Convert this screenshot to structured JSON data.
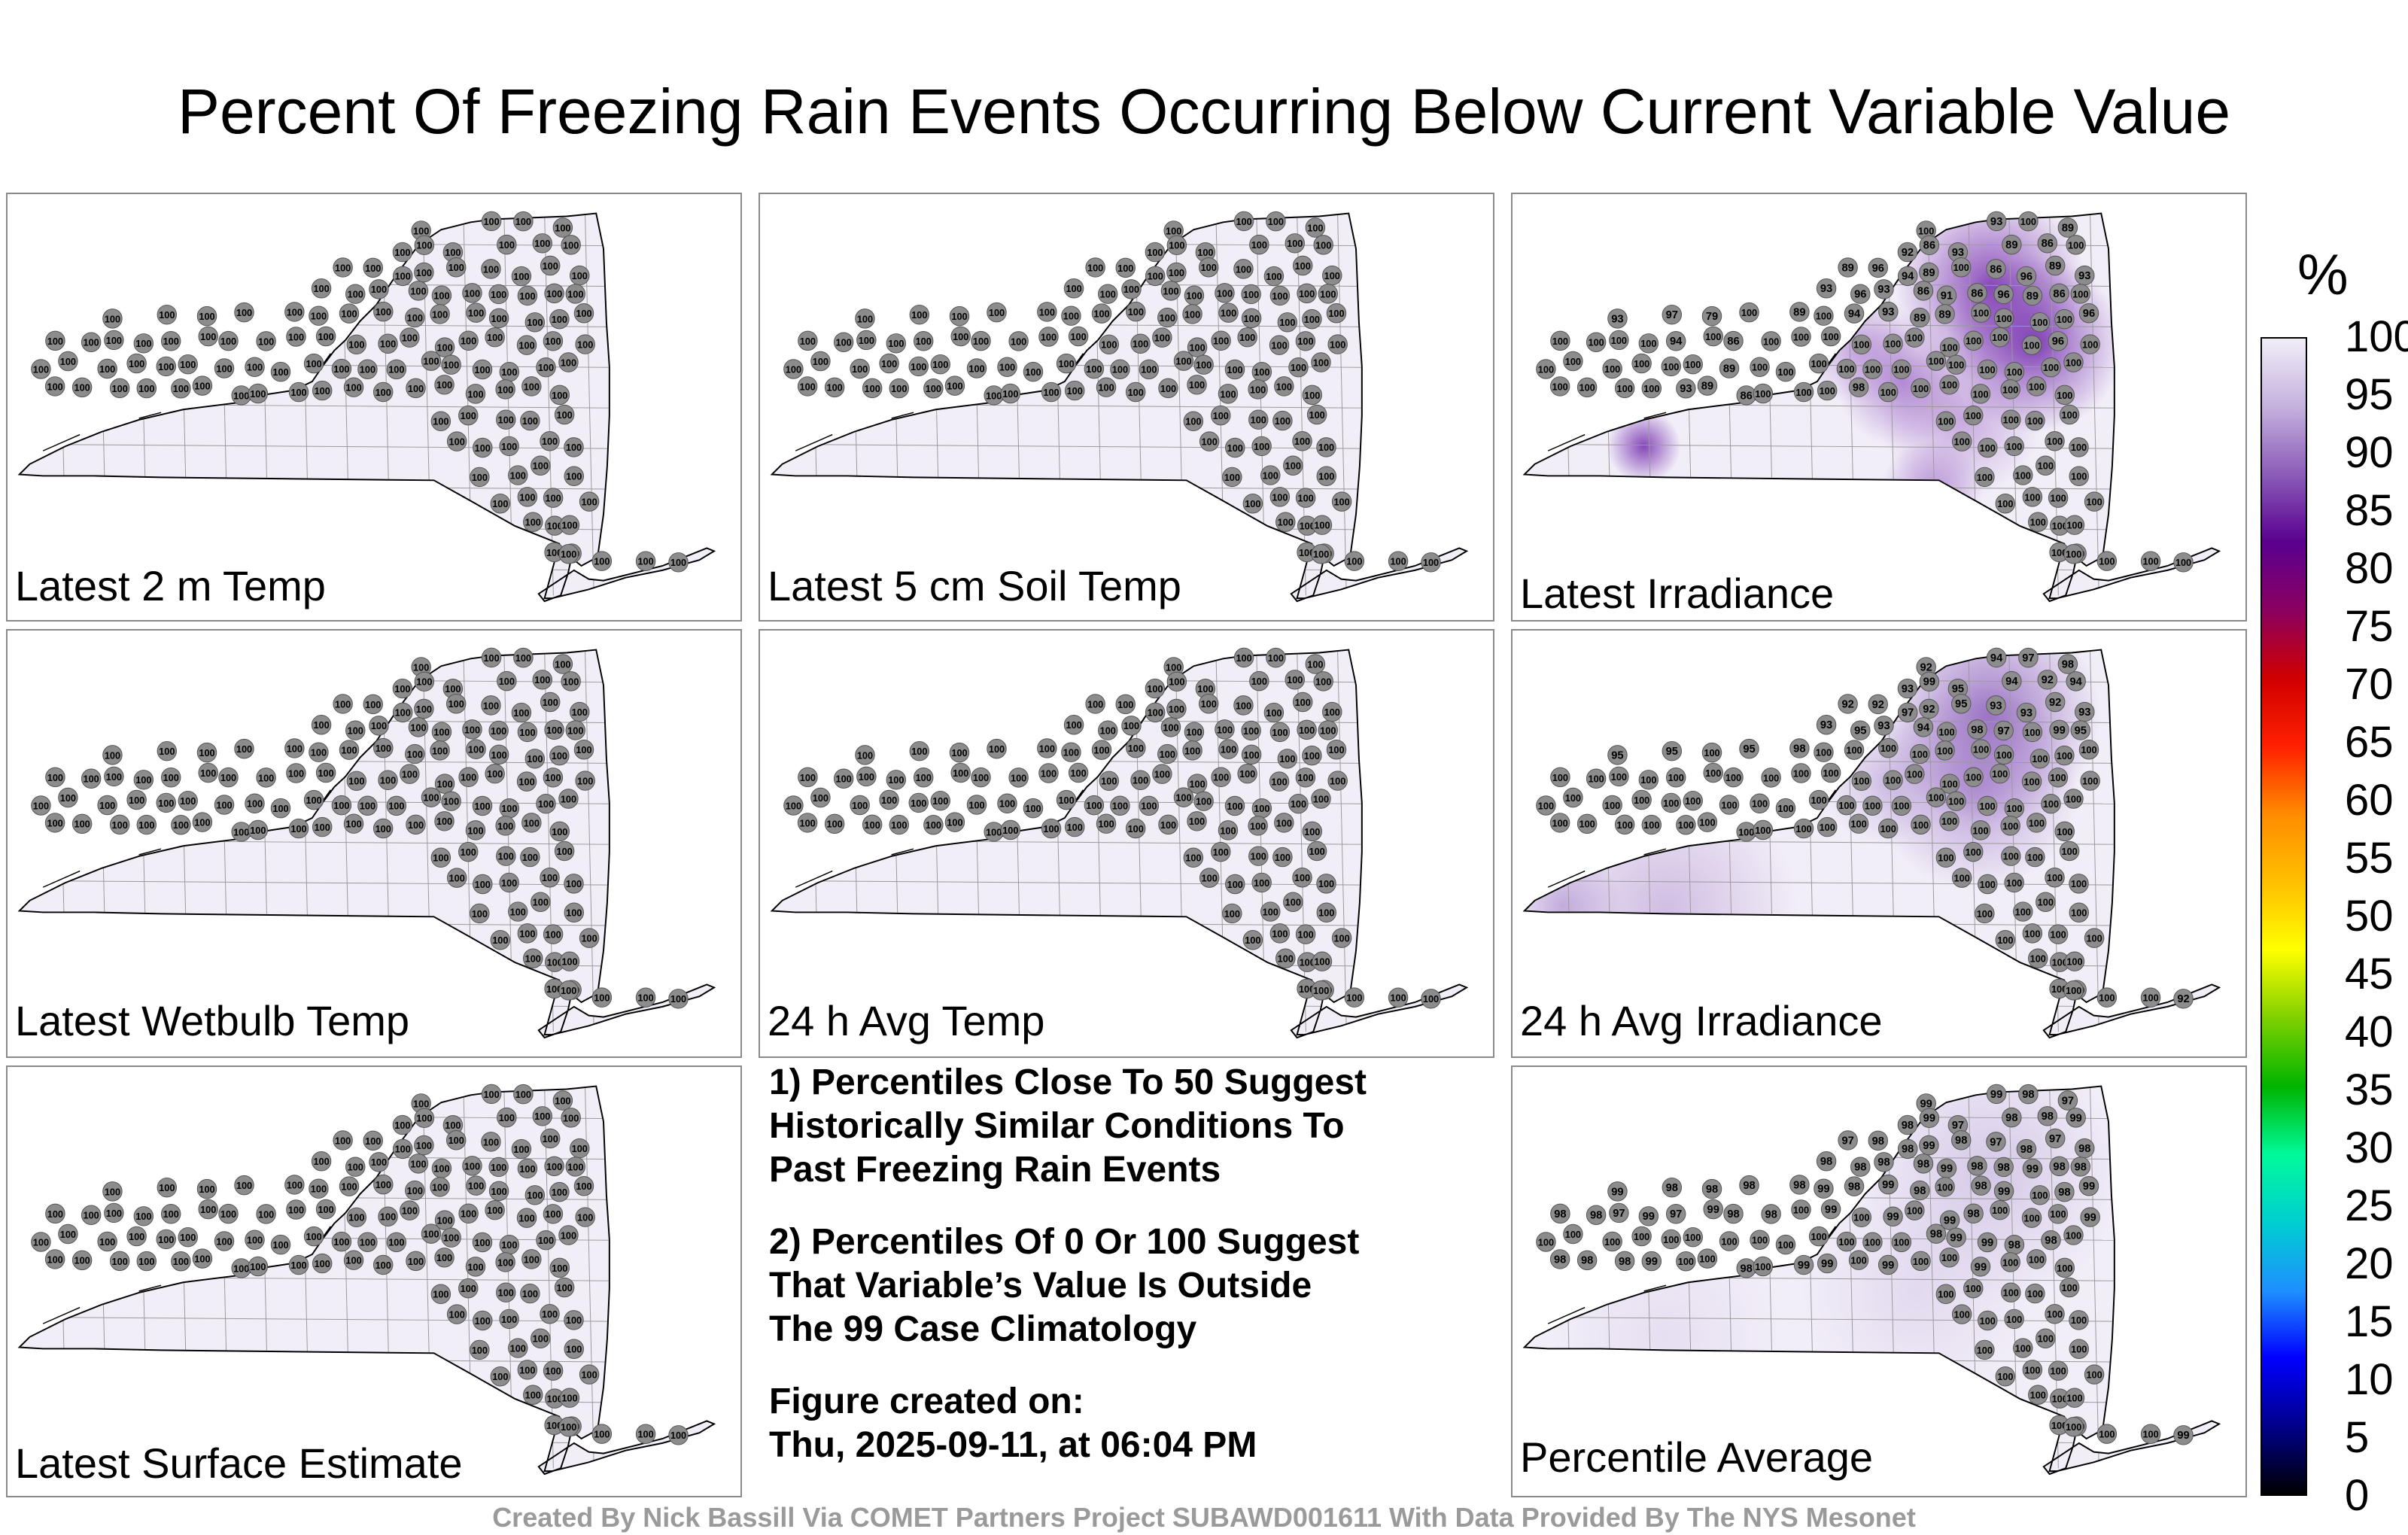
{
  "title": "Percent Of Freezing Rain Events Occurring Below Current Variable Value",
  "panels": [
    {
      "label": "Latest 2 m Temp"
    },
    {
      "label": "Latest 5 cm Soil Temp"
    },
    {
      "label": "Latest Irradiance"
    },
    {
      "label": "Latest Wetbulb Temp"
    },
    {
      "label": "24 h Avg Temp"
    },
    {
      "label": "24 h Avg Irradiance"
    },
    {
      "label": "Latest Surface Estimate"
    },
    {
      "label": "Percentile Average"
    }
  ],
  "notes": {
    "note1": [
      "1) Percentiles Close To 50 Suggest",
      "Historically Similar Conditions To",
      "Past Freezing Rain Events"
    ],
    "note2": [
      "2) Percentiles Of 0 Or 100 Suggest",
      "That Variable’s Value Is Outside",
      "The 99 Case Climatology"
    ],
    "created_label": "Figure created on:",
    "created_value": "Thu, 2025-09-11, at 06:04 PM"
  },
  "colorbar": {
    "unit": "%",
    "ticks": [
      "100",
      "95",
      "90",
      "85",
      "80",
      "75",
      "70",
      "65",
      "60",
      "55",
      "50",
      "45",
      "40",
      "35",
      "30",
      "25",
      "20",
      "15",
      "10",
      "5",
      "0"
    ],
    "colors": [
      "#000000",
      "#00008b",
      "#0000ff",
      "#1e90ff",
      "#00ced1",
      "#00fa9a",
      "#00b400",
      "#7fd000",
      "#ffff00",
      "#ffc000",
      "#ff8c00",
      "#ff2000",
      "#d00000",
      "#8b0060",
      "#5a0090",
      "#8a5bb8",
      "#c4b1dd",
      "#f2eef8"
    ]
  },
  "credit": "Created By Nick Bassill Via COMET Partners Project SUBAWD001611 With Data Provided By The NYS Mesonet",
  "stations": {
    "uniform": [
      "100",
      "100",
      "100",
      "100",
      "100",
      "100",
      "100",
      "100",
      "100",
      "100",
      "100",
      "100",
      "100",
      "100",
      "100",
      "100",
      "100",
      "100",
      "100",
      "100",
      "100",
      "100",
      "100",
      "100",
      "100",
      "100",
      "100",
      "100",
      "100",
      "100",
      "100",
      "100",
      "100",
      "100",
      "100",
      "100",
      "100",
      "100",
      "100",
      "100",
      "100",
      "100",
      "100",
      "100",
      "100",
      "100",
      "100",
      "100",
      "100",
      "100",
      "100",
      "100",
      "100",
      "100",
      "100",
      "100",
      "100",
      "100",
      "100",
      "100",
      "100",
      "100",
      "100",
      "100",
      "100",
      "100",
      "100",
      "100",
      "100",
      "100",
      "100",
      "100",
      "100",
      "100",
      "100",
      "100",
      "100",
      "100",
      "100",
      "100",
      "100",
      "100",
      "100",
      "100",
      "100",
      "100",
      "100",
      "100",
      "100",
      "100",
      "100",
      "100",
      "100",
      "100",
      "100",
      "100",
      "100",
      "100",
      "100",
      "100",
      "100",
      "100",
      "100",
      "100",
      "100",
      "100",
      "100",
      "100",
      "100",
      "100",
      "100",
      "100",
      "100",
      "100",
      "100",
      "100",
      "100",
      "100",
      "100",
      "100",
      "100",
      "100",
      "100",
      "100",
      "100",
      "100"
    ],
    "irradiance": [
      "100",
      "93",
      "100",
      "89",
      "92",
      "86",
      "93",
      "89",
      "86",
      "100",
      "89",
      "96",
      "94",
      "89",
      "100",
      "86",
      "96",
      "89",
      "93",
      "93",
      "96",
      "93",
      "86",
      "91",
      "86",
      "96",
      "89",
      "86",
      "100",
      "93",
      "97",
      "79",
      "100",
      "89",
      "100",
      "94",
      "93",
      "89",
      "89",
      "100",
      "100",
      "100",
      "100",
      "96",
      "100",
      "100",
      "100",
      "100",
      "94",
      "100",
      "86",
      "100",
      "100",
      "100",
      "100",
      "100",
      "100",
      "100",
      "100",
      "100",
      "100",
      "96",
      "100",
      "100",
      "100",
      "100",
      "100",
      "100",
      "100",
      "89",
      "100",
      "100",
      "100",
      "100",
      "100",
      "100",
      "100",
      "100",
      "100",
      "100",
      "100",
      "100",
      "100",
      "100",
      "100",
      "100",
      "93",
      "89",
      "86",
      "100",
      "100",
      "100",
      "98",
      "100",
      "100",
      "100",
      "100",
      "100",
      "100",
      "100",
      "100",
      "100",
      "100",
      "100",
      "100",
      "100",
      "100",
      "100",
      "100",
      "100",
      "100",
      "100",
      "100",
      "100",
      "100",
      "100",
      "100",
      "100",
      "100",
      "100",
      "100",
      "100",
      "100",
      "100",
      "100",
      "100"
    ],
    "avg_irradiance": [
      "92",
      "94",
      "97",
      "98",
      "93",
      "99",
      "95",
      "94",
      "92",
      "94",
      "92",
      "92",
      "97",
      "92",
      "95",
      "93",
      "93",
      "92",
      "93",
      "93",
      "95",
      "93",
      "94",
      "100",
      "98",
      "97",
      "100",
      "99",
      "95",
      "95",
      "95",
      "100",
      "95",
      "98",
      "100",
      "100",
      "100",
      "100",
      "100",
      "100",
      "100",
      "100",
      "100",
      "100",
      "100",
      "100",
      "100",
      "100",
      "100",
      "100",
      "100",
      "100",
      "100",
      "100",
      "100",
      "100",
      "100",
      "100",
      "100",
      "100",
      "100",
      "100",
      "100",
      "100",
      "100",
      "100",
      "100",
      "100",
      "100",
      "100",
      "100",
      "100",
      "100",
      "100",
      "100",
      "100",
      "100",
      "100",
      "100",
      "100",
      "100",
      "100",
      "100",
      "100",
      "100",
      "100",
      "100",
      "100",
      "100",
      "100",
      "100",
      "100",
      "100",
      "100",
      "100",
      "100",
      "100",
      "100",
      "100",
      "100",
      "100",
      "100",
      "100",
      "100",
      "100",
      "100",
      "100",
      "100",
      "100",
      "100",
      "100",
      "100",
      "100",
      "100",
      "100",
      "100",
      "100",
      "100",
      "100",
      "100",
      "100",
      "100",
      "100",
      "100",
      "100",
      "100"
    ],
    "average": [
      "99",
      "99",
      "98",
      "97",
      "98",
      "99",
      "97",
      "98",
      "98",
      "99",
      "97",
      "98",
      "98",
      "99",
      "98",
      "97",
      "98",
      "97",
      "98",
      "98",
      "98",
      "98",
      "98",
      "99",
      "98",
      "98",
      "99",
      "98",
      "98",
      "99",
      "98",
      "98",
      "98",
      "98",
      "99",
      "98",
      "99",
      "98",
      "100",
      "98",
      "99",
      "100",
      "98",
      "99",
      "98",
      "98",
      "97",
      "99",
      "97",
      "99",
      "98",
      "98",
      "100",
      "99",
      "100",
      "99",
      "100",
      "99",
      "98",
      "100",
      "100",
      "100",
      "99",
      "100",
      "100",
      "100",
      "100",
      "100",
      "100",
      "100",
      "100",
      "100",
      "100",
      "100",
      "100",
      "100",
      "98",
      "99",
      "99",
      "98",
      "98",
      "100",
      "98",
      "98",
      "98",
      "99",
      "100",
      "100",
      "98",
      "100",
      "99",
      "99",
      "100",
      "99",
      "100",
      "100",
      "99",
      "100",
      "100",
      "100",
      "100",
      "100",
      "100",
      "100",
      "100",
      "100",
      "100",
      "100",
      "100",
      "100",
      "100",
      "100",
      "100",
      "100",
      "100",
      "100",
      "100",
      "100",
      "100",
      "100",
      "100",
      "100",
      "100",
      "100",
      "100",
      "100"
    ]
  }
}
